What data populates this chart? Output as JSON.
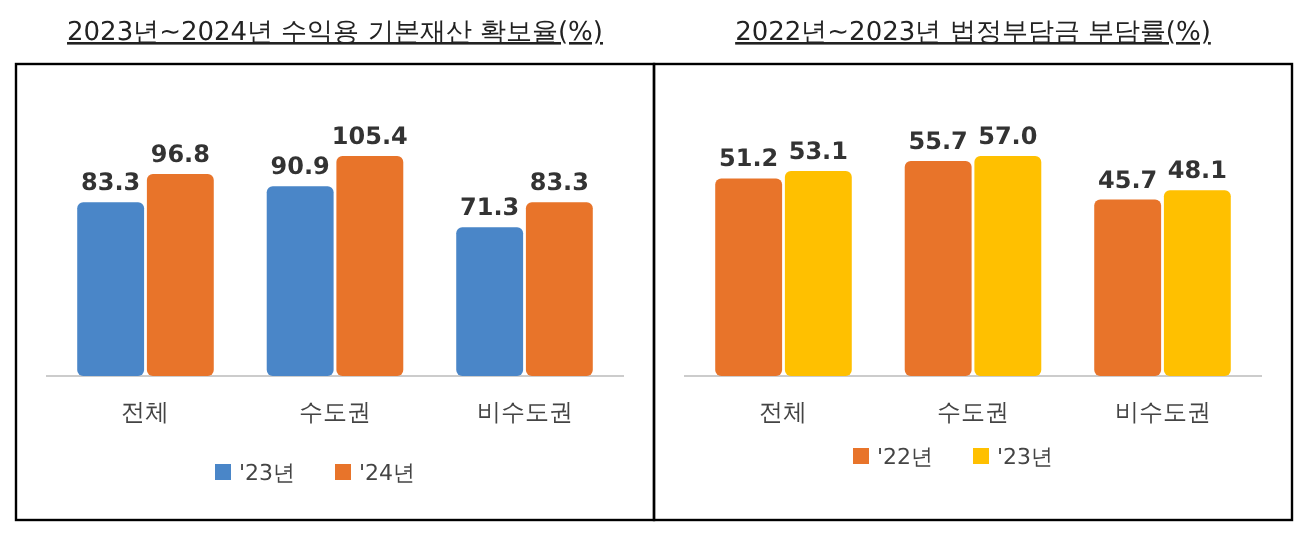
{
  "chart_data": [
    {
      "type": "bar",
      "title": "2023년~2024년 수익용 기본재산 확보율(%)",
      "categories": [
        "전체",
        "수도권",
        "비수도권"
      ],
      "series": [
        {
          "name": "'23년",
          "color": "#4a86c8",
          "values": [
            83.3,
            90.9,
            71.3
          ]
        },
        {
          "name": "'24년",
          "color": "#e8742a",
          "values": [
            96.8,
            105.4,
            83.3
          ]
        }
      ],
      "data_labels": true,
      "legend": "bottom",
      "grid": false
    },
    {
      "type": "bar",
      "title": "2022년~2023년 법정부담금 부담률(%)",
      "categories": [
        "전체",
        "수도권",
        "비수도권"
      ],
      "series": [
        {
          "name": "'22년",
          "color": "#e8742a",
          "values": [
            51.2,
            55.7,
            45.7
          ]
        },
        {
          "name": "'23년",
          "color": "#ffc000",
          "values": [
            53.1,
            57.0,
            48.1
          ],
          "value_labels": [
            "53.1",
            "57.0",
            "48.1"
          ]
        }
      ],
      "data_labels": true,
      "legend": "bottom",
      "grid": false
    }
  ]
}
